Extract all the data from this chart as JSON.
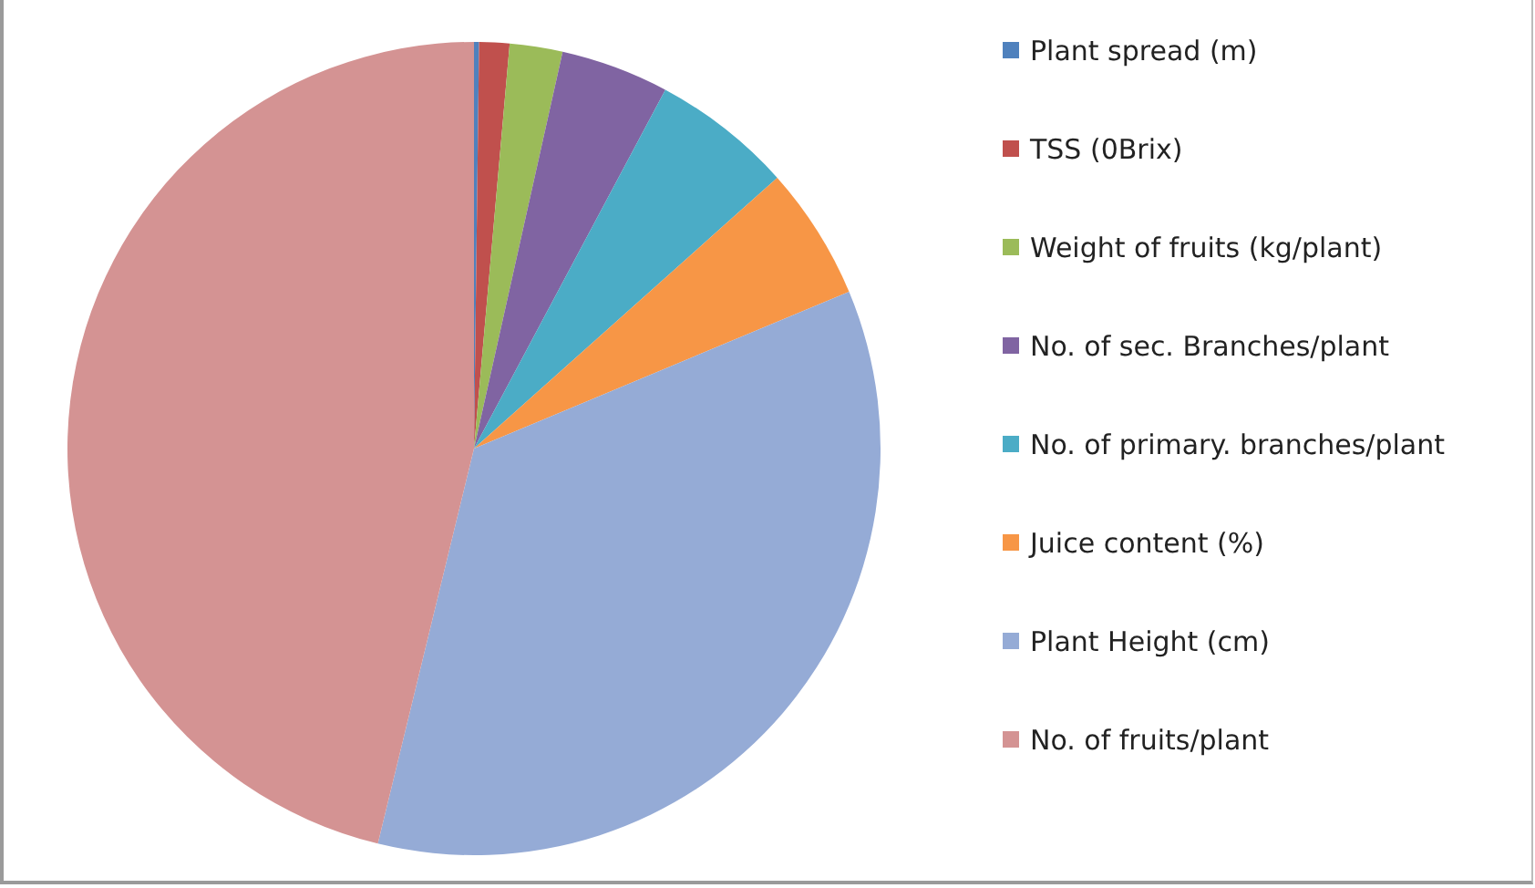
{
  "chart_data": {
    "type": "pie",
    "categories": [
      "Plant spread (m)",
      "TSS (0Brix)",
      "Weight of fruits (kg/plant)",
      "No. of sec. Branches/plant",
      "No. of primary. branches/plant",
      "Juice content (%)",
      "Plant Height (cm)",
      "No. of fruits/plant"
    ],
    "values": [
      0.2,
      1.2,
      2.1,
      4.3,
      5.6,
      5.3,
      35.1,
      46.2
    ],
    "colors": [
      "#4f81bd",
      "#c0504d",
      "#9bbb59",
      "#8064a2",
      "#4bacc6",
      "#f79646",
      "#95abd6",
      "#d49393"
    ],
    "legend": "right"
  }
}
